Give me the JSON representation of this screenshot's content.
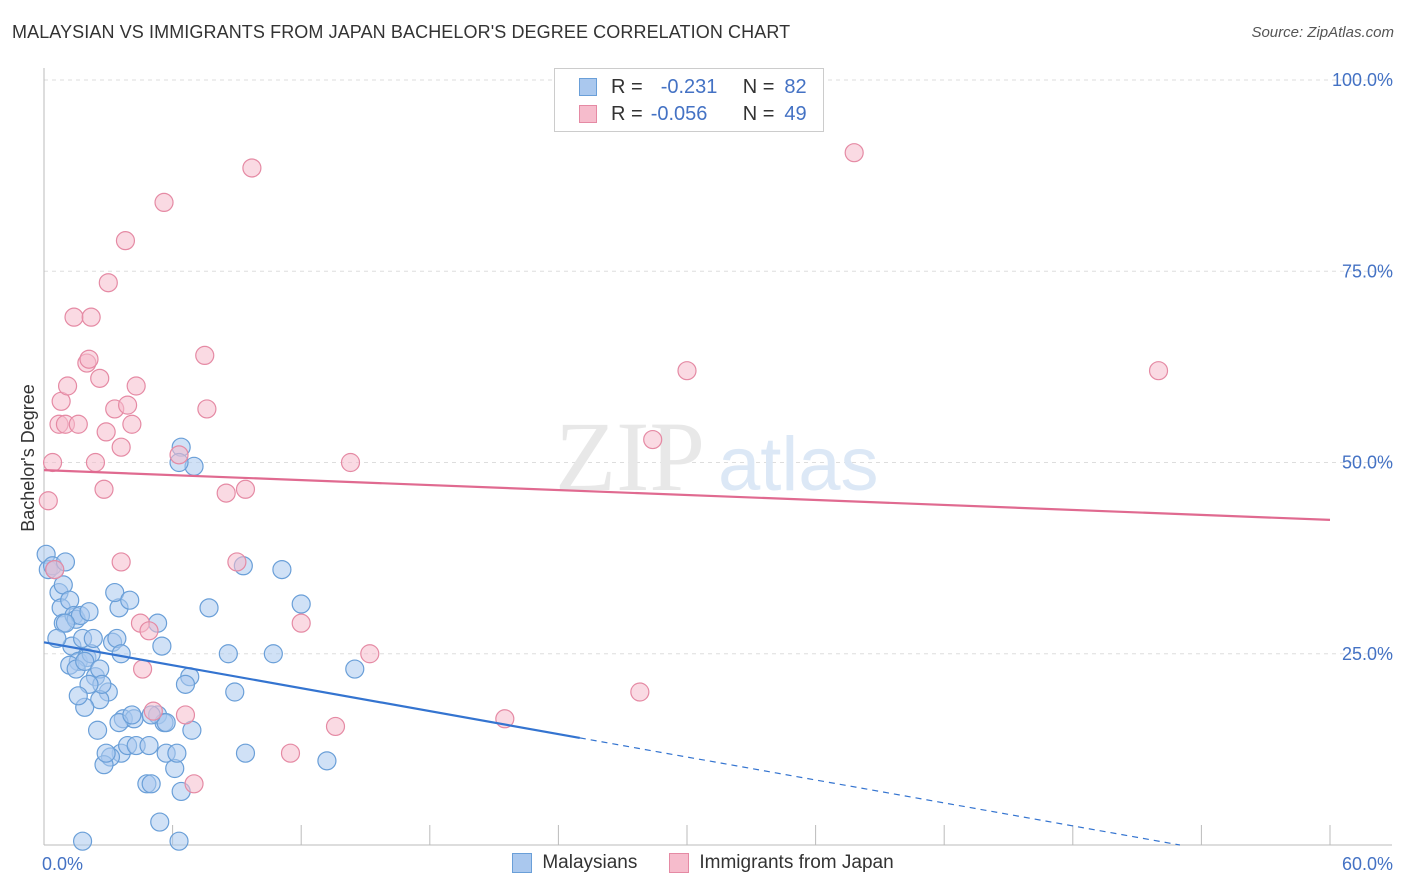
{
  "header": {
    "title": "MALAYSIAN VS IMMIGRANTS FROM JAPAN BACHELOR'S DEGREE CORRELATION CHART",
    "source": "Source: ZipAtlas.com"
  },
  "legend": {
    "rows": [
      {
        "r_label": "R =",
        "r_value": "-0.231",
        "n_label": "N =",
        "n_value": "82",
        "color": "#aac8ee",
        "edge": "#6a9fd8"
      },
      {
        "r_label": "R =",
        "r_value": "-0.056",
        "n_label": "N =",
        "n_value": "49",
        "color": "#f6bccc",
        "edge": "#e58aa4"
      }
    ]
  },
  "watermark": {
    "zip": "ZIP",
    "atlas": "atlas"
  },
  "chart_data": {
    "type": "scatter",
    "title": "MALAYSIAN VS IMMIGRANTS FROM JAPAN BACHELOR'S DEGREE CORRELATION CHART",
    "xlabel": "",
    "ylabel": "Bachelor's Degree",
    "xlim": [
      0,
      60
    ],
    "ylim": [
      0,
      100
    ],
    "x_tick_labels": [
      {
        "value": 0,
        "label": "0.0%"
      },
      {
        "value": 60,
        "label": "60.0%"
      }
    ],
    "y_tick_labels": [
      {
        "value": 25,
        "label": "25.0%"
      },
      {
        "value": 50,
        "label": "50.0%"
      },
      {
        "value": 75,
        "label": "75.0%"
      },
      {
        "value": 100,
        "label": "100.0%"
      }
    ],
    "grid": true,
    "legend_position": "top-center",
    "series": [
      {
        "name": "Malaysians",
        "fill": "#aac8ee",
        "stroke": "#6a9fd8",
        "line_color": "#3474d0",
        "trend": {
          "x0": 0,
          "y0": 26.5,
          "x1": 25,
          "y1": 14,
          "dash_x1": 53,
          "dash_y1": 0
        },
        "points": [
          [
            0.1,
            38
          ],
          [
            0.2,
            36
          ],
          [
            0.4,
            36.5
          ],
          [
            0.5,
            36
          ],
          [
            0.7,
            33
          ],
          [
            0.9,
            34
          ],
          [
            1.0,
            37
          ],
          [
            0.8,
            31
          ],
          [
            1.2,
            32
          ],
          [
            0.9,
            29
          ],
          [
            1.4,
            30
          ],
          [
            1.5,
            29.5
          ],
          [
            1.7,
            30
          ],
          [
            2.1,
            30.5
          ],
          [
            1.3,
            26
          ],
          [
            1.8,
            27
          ],
          [
            1.6,
            24
          ],
          [
            2.0,
            24.5
          ],
          [
            2.2,
            25
          ],
          [
            1.2,
            23.5
          ],
          [
            1.5,
            23
          ],
          [
            1.9,
            24
          ],
          [
            2.4,
            22
          ],
          [
            2.6,
            23
          ],
          [
            3.2,
            26.5
          ],
          [
            3.4,
            27
          ],
          [
            3.6,
            25
          ],
          [
            3.5,
            31
          ],
          [
            3.3,
            33
          ],
          [
            4.0,
            32
          ],
          [
            3.0,
            20
          ],
          [
            2.6,
            19
          ],
          [
            2.7,
            21
          ],
          [
            2.1,
            21
          ],
          [
            1.9,
            18
          ],
          [
            1.6,
            19.5
          ],
          [
            3.7,
            16.5
          ],
          [
            4.2,
            16.5
          ],
          [
            3.5,
            16
          ],
          [
            3.6,
            12
          ],
          [
            3.1,
            11.5
          ],
          [
            2.8,
            10.5
          ],
          [
            2.9,
            12
          ],
          [
            2.5,
            15
          ],
          [
            3.9,
            13
          ],
          [
            4.3,
            13
          ],
          [
            4.1,
            17
          ],
          [
            4.9,
            13
          ],
          [
            4.8,
            8
          ],
          [
            5.0,
            8
          ],
          [
            5.3,
            17
          ],
          [
            5.5,
            26
          ],
          [
            5.3,
            29
          ],
          [
            5.6,
            16
          ],
          [
            5.7,
            16
          ],
          [
            5.0,
            17
          ],
          [
            5.7,
            12
          ],
          [
            6.1,
            10
          ],
          [
            6.4,
            7
          ],
          [
            5.4,
            3
          ],
          [
            6.8,
            22
          ],
          [
            6.6,
            21
          ],
          [
            6.9,
            15
          ],
          [
            7.0,
            49.5
          ],
          [
            6.4,
            52
          ],
          [
            6.3,
            50
          ],
          [
            7.7,
            31
          ],
          [
            8.6,
            25
          ],
          [
            8.9,
            20
          ],
          [
            9.4,
            12
          ],
          [
            9.3,
            36.5
          ],
          [
            10.7,
            25
          ],
          [
            11.1,
            36
          ],
          [
            12.0,
            31.5
          ],
          [
            13.2,
            11
          ],
          [
            14.5,
            23
          ],
          [
            1.0,
            29
          ],
          [
            0.6,
            27
          ],
          [
            2.3,
            27
          ],
          [
            6.2,
            12
          ],
          [
            6.3,
            0.5
          ],
          [
            1.8,
            0.5
          ]
        ]
      },
      {
        "name": "Immigrants from Japan",
        "fill": "#f6bccc",
        "stroke": "#e58aa4",
        "line_color": "#e06a90",
        "trend": {
          "x0": 0,
          "y0": 49,
          "x1": 60,
          "y1": 42.5
        },
        "points": [
          [
            0.2,
            45
          ],
          [
            0.4,
            50
          ],
          [
            0.5,
            36
          ],
          [
            0.7,
            55
          ],
          [
            0.8,
            58
          ],
          [
            1.0,
            55
          ],
          [
            1.1,
            60
          ],
          [
            1.4,
            69
          ],
          [
            1.6,
            55
          ],
          [
            2.0,
            63
          ],
          [
            2.1,
            63.5
          ],
          [
            2.2,
            69
          ],
          [
            2.4,
            50
          ],
          [
            2.6,
            61
          ],
          [
            2.8,
            46.5
          ],
          [
            2.9,
            54
          ],
          [
            3.0,
            73.5
          ],
          [
            3.3,
            57
          ],
          [
            3.6,
            52
          ],
          [
            3.9,
            57.5
          ],
          [
            3.6,
            37
          ],
          [
            4.1,
            55
          ],
          [
            4.3,
            60
          ],
          [
            4.5,
            29
          ],
          [
            4.6,
            23
          ],
          [
            4.9,
            28
          ],
          [
            5.1,
            17.5
          ],
          [
            3.8,
            79
          ],
          [
            5.6,
            84
          ],
          [
            6.3,
            51
          ],
          [
            6.6,
            17
          ],
          [
            7.0,
            8
          ],
          [
            7.5,
            64
          ],
          [
            7.6,
            57
          ],
          [
            8.5,
            46
          ],
          [
            9.0,
            37
          ],
          [
            9.4,
            46.5
          ],
          [
            9.7,
            88.5
          ],
          [
            11.5,
            12
          ],
          [
            12.0,
            29
          ],
          [
            13.6,
            15.5
          ],
          [
            14.3,
            50
          ],
          [
            15.2,
            25
          ],
          [
            21.5,
            16.5
          ],
          [
            27.8,
            20
          ],
          [
            28.4,
            53
          ],
          [
            30.0,
            62
          ],
          [
            37.8,
            90.5
          ],
          [
            52.0,
            62
          ]
        ]
      }
    ]
  },
  "bottom_legend": [
    {
      "label": "Malaysians",
      "color": "#aac8ee",
      "edge": "#6a9fd8"
    },
    {
      "label": "Immigrants from Japan",
      "color": "#f6bccc",
      "edge": "#e58aa4"
    }
  ]
}
